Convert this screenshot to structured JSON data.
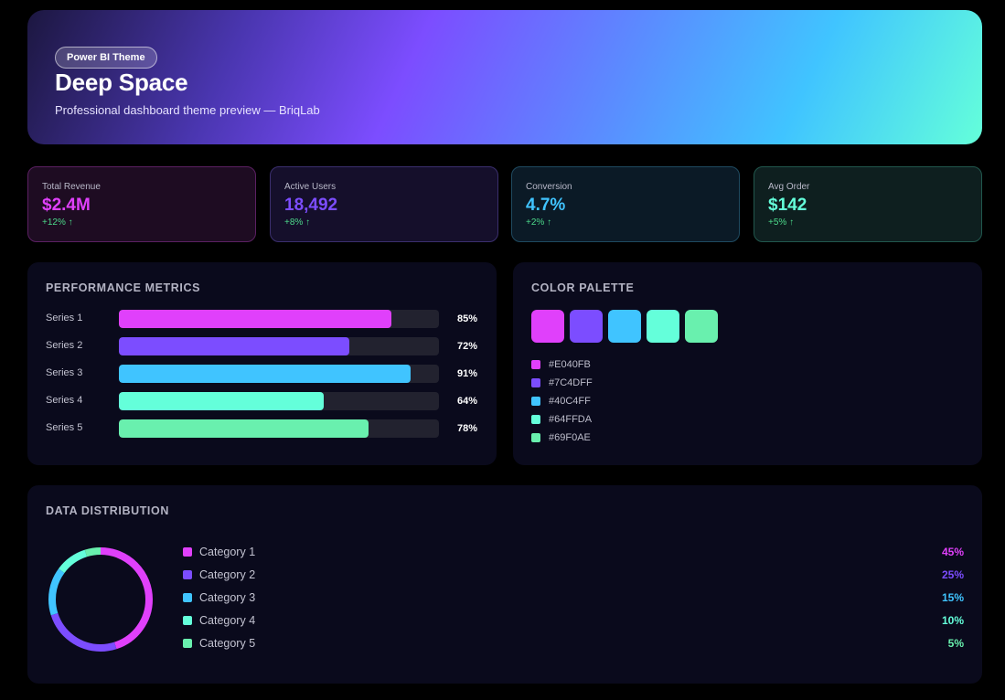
{
  "hero": {
    "badge": "Power BI Theme",
    "title": "Deep Space",
    "subtitle": "Professional dashboard theme preview — BriqLab"
  },
  "kpis": [
    {
      "label": "Total Revenue",
      "value": "$2.4M",
      "delta": "+12% ↑",
      "color": "#E040FB"
    },
    {
      "label": "Active Users",
      "value": "18,492",
      "delta": "+8% ↑",
      "color": "#7C4DFF"
    },
    {
      "label": "Conversion",
      "value": "4.7%",
      "delta": "+2% ↑",
      "color": "#40C4FF"
    },
    {
      "label": "Avg Order",
      "value": "$142",
      "delta": "+5% ↑",
      "color": "#64FFDA"
    }
  ],
  "performance": {
    "title": "PERFORMANCE METRICS",
    "series": [
      {
        "label": "Series 1",
        "value": 85,
        "pct": "85%",
        "color": "#E040FB"
      },
      {
        "label": "Series 2",
        "value": 72,
        "pct": "72%",
        "color": "#7C4DFF"
      },
      {
        "label": "Series 3",
        "value": 91,
        "pct": "91%",
        "color": "#40C4FF"
      },
      {
        "label": "Series 4",
        "value": 64,
        "pct": "64%",
        "color": "#64FFDA"
      },
      {
        "label": "Series 5",
        "value": 78,
        "pct": "78%",
        "color": "#69F0AE"
      }
    ]
  },
  "palette": {
    "title": "COLOR PALETTE",
    "colors": [
      "#E040FB",
      "#7C4DFF",
      "#40C4FF",
      "#64FFDA",
      "#69F0AE"
    ]
  },
  "distribution": {
    "title": "DATA DISTRIBUTION",
    "categories": [
      {
        "label": "Category 1",
        "value": 45,
        "pct": "45%",
        "color": "#E040FB"
      },
      {
        "label": "Category 2",
        "value": 25,
        "pct": "25%",
        "color": "#7C4DFF"
      },
      {
        "label": "Category 3",
        "value": 15,
        "pct": "15%",
        "color": "#40C4FF"
      },
      {
        "label": "Category 4",
        "value": 10,
        "pct": "10%",
        "color": "#64FFDA"
      },
      {
        "label": "Category 5",
        "value": 5,
        "pct": "5%",
        "color": "#69F0AE"
      }
    ]
  }
}
